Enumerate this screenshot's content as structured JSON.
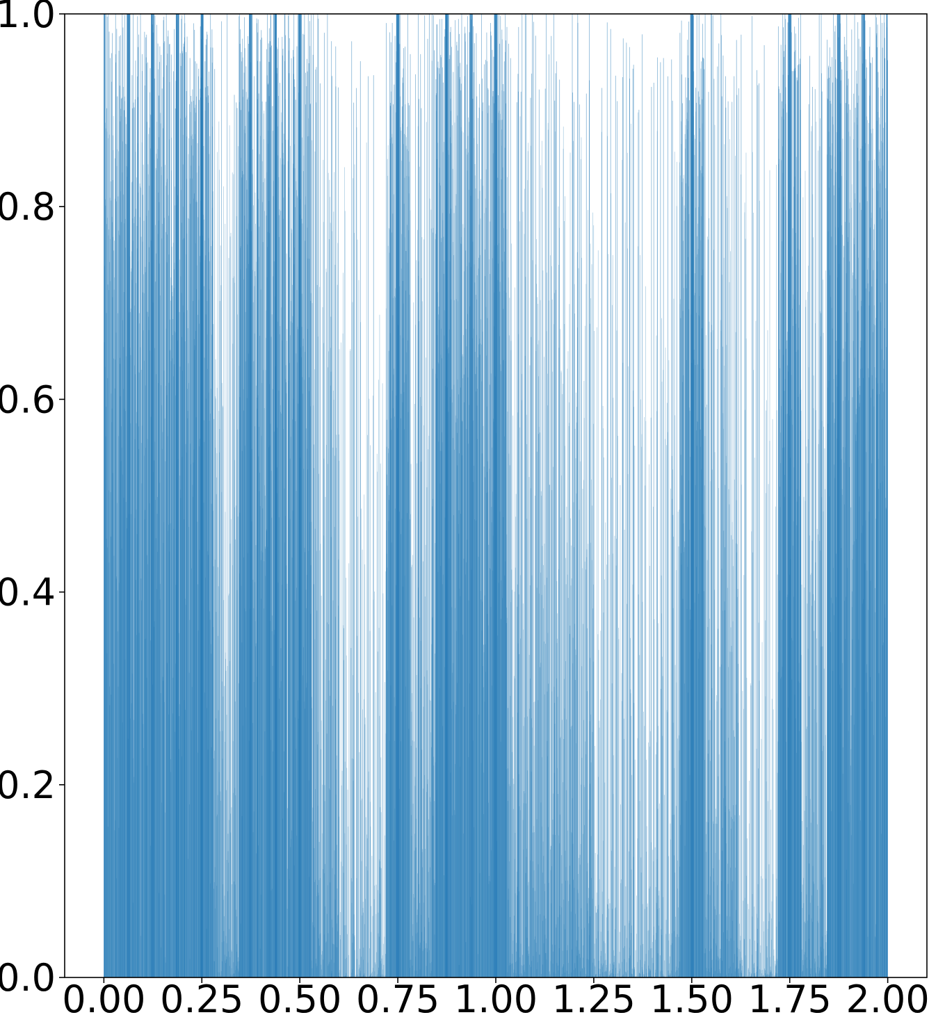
{
  "chart_data": {
    "type": "bar",
    "description_of_marks": "dense vertical lines (vlines) with uniformly random-like heights between 0 and 1; clusters of full-height lines near simple rational x values",
    "xlim": [
      -0.1,
      2.1
    ],
    "ylim": [
      0.0,
      1.0
    ],
    "x_range_of_data": [
      0.0,
      2.0
    ],
    "xticks": [
      "0.00",
      "0.25",
      "0.50",
      "0.75",
      "1.00",
      "1.25",
      "1.50",
      "1.75",
      "2.00"
    ],
    "xtick_values": [
      0.0,
      0.25,
      0.5,
      0.75,
      1.0,
      1.25,
      1.5,
      1.75,
      2.0
    ],
    "yticks": [
      "0.0",
      "0.2",
      "0.4",
      "0.6",
      "0.8",
      "1.0"
    ],
    "ytick_values": [
      0.0,
      0.2,
      0.4,
      0.6,
      0.8,
      1.0
    ],
    "dense_cluster_centers": [
      0.0,
      0.0625,
      0.125,
      0.1875,
      0.25,
      0.375,
      0.4375,
      0.5,
      0.75,
      0.875,
      0.9375,
      1.0,
      1.5,
      1.75,
      1.875,
      1.9375,
      2.0
    ],
    "sparse_regions": [
      [
        0.6,
        0.72
      ],
      [
        1.25,
        1.45
      ],
      [
        1.62,
        1.72
      ]
    ],
    "color": "#1f77b4",
    "grid": false,
    "title": "",
    "xlabel": "",
    "ylabel": ""
  }
}
